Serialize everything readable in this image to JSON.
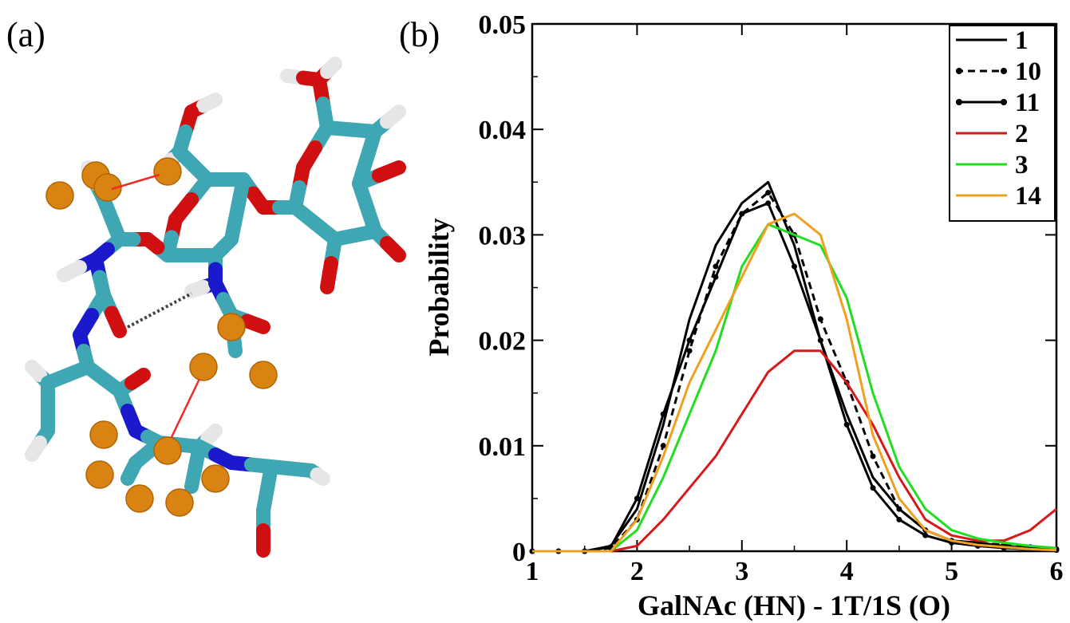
{
  "panels": {
    "a_label": "(a)",
    "b_label": "(b)"
  },
  "molecule": {
    "colors": {
      "carbon": "#3fa7b3",
      "oxygen": "#d01010",
      "nitrogen": "#1a1acc",
      "hydrogen": "#e6e6e6",
      "fluorine": "#d98312",
      "arrow": "#f02a2a",
      "hbond": "#444444"
    }
  },
  "chart_data": {
    "type": "line",
    "title": "",
    "xlabel": "GalNAc (HN) - 1T/1S (O)",
    "ylabel": "Probability",
    "xlim": [
      1,
      6
    ],
    "ylim": [
      0,
      0.05
    ],
    "xticks": [
      1,
      2,
      3,
      4,
      5,
      6
    ],
    "xtick_labels": [
      "1",
      "2",
      "3",
      "4",
      "5",
      "6"
    ],
    "yticks": [
      0,
      0.01,
      0.02,
      0.03,
      0.04,
      0.05
    ],
    "ytick_labels": [
      "0",
      "0.01",
      "0.02",
      "0.03",
      "0.04",
      "0.05"
    ],
    "grid": false,
    "legend_position": "top-right",
    "x": [
      1.0,
      1.25,
      1.5,
      1.75,
      2.0,
      2.25,
      2.5,
      2.75,
      3.0,
      3.25,
      3.5,
      3.75,
      4.0,
      4.25,
      4.5,
      4.75,
      5.0,
      5.25,
      5.5,
      5.75,
      6.0
    ],
    "series": [
      {
        "name": "1",
        "color": "#000000",
        "style": "solid",
        "marker": false,
        "values": [
          0,
          0,
          0,
          0.0005,
          0.004,
          0.012,
          0.022,
          0.029,
          0.033,
          0.035,
          0.029,
          0.02,
          0.013,
          0.007,
          0.004,
          0.002,
          0.001,
          0.0008,
          0.0005,
          0.0003,
          0.0002
        ]
      },
      {
        "name": "10",
        "color": "#000000",
        "style": "dashed",
        "marker": true,
        "values": [
          0,
          0,
          0,
          0.0003,
          0.003,
          0.01,
          0.019,
          0.027,
          0.032,
          0.034,
          0.03,
          0.022,
          0.016,
          0.009,
          0.004,
          0.002,
          0.001,
          0.0008,
          0.0006,
          0.0004,
          0.0002
        ]
      },
      {
        "name": "11",
        "color": "#000000",
        "style": "solid",
        "marker": true,
        "values": [
          0,
          0,
          0,
          0.0004,
          0.005,
          0.013,
          0.02,
          0.026,
          0.032,
          0.033,
          0.027,
          0.02,
          0.012,
          0.006,
          0.003,
          0.0015,
          0.0008,
          0.0005,
          0.0003,
          0.0002,
          0.0001
        ]
      },
      {
        "name": "2",
        "color": "#d61a1a",
        "style": "solid",
        "marker": false,
        "values": [
          0,
          0,
          0,
          0,
          0.0005,
          0.003,
          0.006,
          0.009,
          0.013,
          0.017,
          0.019,
          0.019,
          0.016,
          0.012,
          0.007,
          0.003,
          0.0015,
          0.001,
          0.001,
          0.002,
          0.004
        ]
      },
      {
        "name": "3",
        "color": "#22dd22",
        "style": "solid",
        "marker": false,
        "values": [
          0,
          0,
          0,
          0,
          0.002,
          0.007,
          0.013,
          0.019,
          0.027,
          0.031,
          0.03,
          0.029,
          0.024,
          0.015,
          0.008,
          0.004,
          0.002,
          0.0012,
          0.0008,
          0.0005,
          0.0003
        ]
      },
      {
        "name": "14",
        "color": "#f0a020",
        "style": "solid",
        "marker": false,
        "values": [
          0,
          0,
          0,
          0,
          0.003,
          0.009,
          0.016,
          0.021,
          0.026,
          0.031,
          0.032,
          0.03,
          0.022,
          0.011,
          0.005,
          0.002,
          0.001,
          0.0006,
          0.0004,
          0.0002,
          0.0001
        ]
      }
    ]
  }
}
